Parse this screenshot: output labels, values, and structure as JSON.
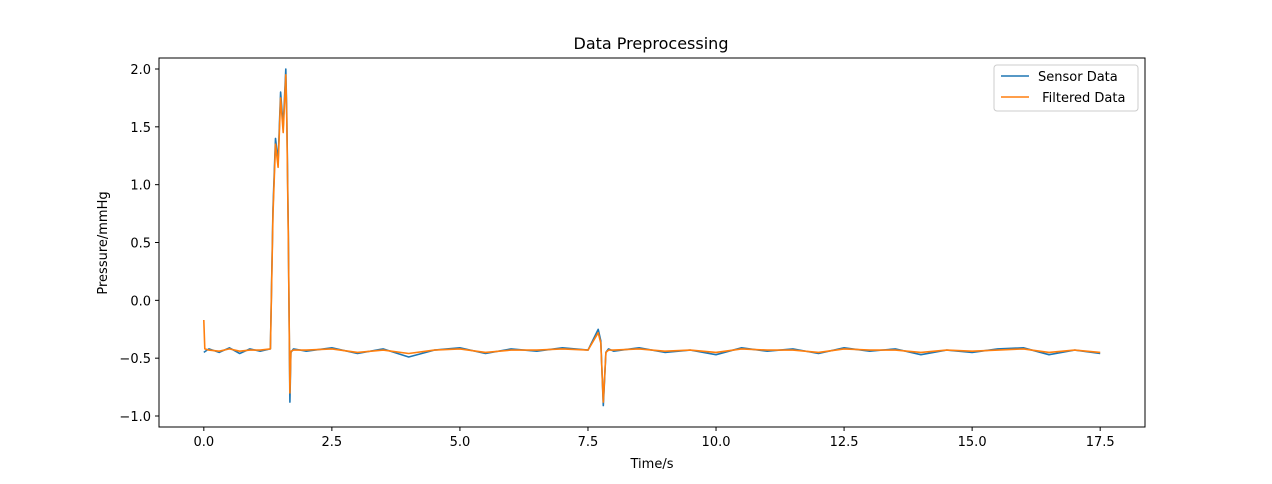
{
  "chart_data": {
    "type": "line",
    "title": "Data Preprocessing",
    "xlabel": "Time/s",
    "ylabel": "Pressure/mmHg",
    "xlim": [
      -0.875,
      18.375
    ],
    "ylim": [
      -1.095,
      2.095
    ],
    "xticks": [
      0.0,
      2.5,
      5.0,
      7.5,
      10.0,
      12.5,
      15.0,
      17.5
    ],
    "xtick_labels": [
      "0.0",
      "2.5",
      "5.0",
      "7.5",
      "10.0",
      "12.5",
      "15.0",
      "17.5"
    ],
    "yticks": [
      -1.0,
      -0.5,
      0.0,
      0.5,
      1.0,
      1.5,
      2.0
    ],
    "ytick_labels": [
      "−1.0",
      "−0.5",
      "0.0",
      "0.5",
      "1.0",
      "1.5",
      "2.0"
    ],
    "grid": false,
    "legend_position": "top-right",
    "series": [
      {
        "name": "Sensor Data",
        "color": "#1f77b4",
        "x": [
          0.0,
          0.1,
          0.3,
          0.5,
          0.7,
          0.9,
          1.1,
          1.3,
          1.35,
          1.4,
          1.45,
          1.5,
          1.55,
          1.6,
          1.62,
          1.65,
          1.68,
          1.7,
          1.75,
          2.0,
          2.5,
          3.0,
          3.5,
          4.0,
          4.5,
          5.0,
          5.5,
          6.0,
          6.5,
          7.0,
          7.5,
          7.7,
          7.75,
          7.8,
          7.85,
          7.9,
          8.0,
          8.5,
          9.0,
          9.5,
          10.0,
          10.5,
          11.0,
          11.5,
          12.0,
          12.5,
          13.0,
          13.5,
          14.0,
          14.5,
          15.0,
          15.5,
          16.0,
          16.5,
          17.0,
          17.5
        ],
        "y": [
          -0.45,
          -0.42,
          -0.45,
          -0.41,
          -0.46,
          -0.42,
          -0.44,
          -0.42,
          0.8,
          1.4,
          1.2,
          1.8,
          1.5,
          2.0,
          1.6,
          0.6,
          -0.88,
          -0.45,
          -0.42,
          -0.44,
          -0.41,
          -0.46,
          -0.42,
          -0.49,
          -0.43,
          -0.41,
          -0.46,
          -0.42,
          -0.44,
          -0.41,
          -0.43,
          -0.25,
          -0.35,
          -0.91,
          -0.45,
          -0.42,
          -0.44,
          -0.41,
          -0.45,
          -0.43,
          -0.47,
          -0.41,
          -0.44,
          -0.42,
          -0.46,
          -0.41,
          -0.44,
          -0.42,
          -0.47,
          -0.43,
          -0.45,
          -0.42,
          -0.41,
          -0.47,
          -0.43,
          -0.46
        ]
      },
      {
        "name": " Filtered Data",
        "color": "#ff7f0e",
        "x": [
          0.0,
          0.02,
          0.1,
          0.3,
          0.5,
          0.7,
          0.9,
          1.1,
          1.3,
          1.35,
          1.4,
          1.45,
          1.5,
          1.55,
          1.6,
          1.62,
          1.65,
          1.68,
          1.7,
          1.75,
          2.0,
          2.5,
          3.0,
          3.5,
          4.0,
          4.5,
          5.0,
          5.5,
          6.0,
          6.5,
          7.0,
          7.5,
          7.7,
          7.75,
          7.8,
          7.85,
          7.9,
          8.0,
          8.5,
          9.0,
          9.5,
          10.0,
          10.5,
          11.0,
          11.5,
          12.0,
          12.5,
          13.0,
          13.5,
          14.0,
          14.5,
          15.0,
          15.5,
          16.0,
          16.5,
          17.0,
          17.5
        ],
        "y": [
          -0.17,
          -0.42,
          -0.43,
          -0.44,
          -0.42,
          -0.44,
          -0.43,
          -0.43,
          -0.42,
          0.75,
          1.35,
          1.15,
          1.75,
          1.45,
          1.95,
          1.55,
          0.55,
          -0.8,
          -0.44,
          -0.43,
          -0.43,
          -0.42,
          -0.45,
          -0.43,
          -0.46,
          -0.43,
          -0.42,
          -0.45,
          -0.43,
          -0.43,
          -0.42,
          -0.43,
          -0.28,
          -0.37,
          -0.88,
          -0.45,
          -0.43,
          -0.43,
          -0.42,
          -0.44,
          -0.43,
          -0.45,
          -0.42,
          -0.43,
          -0.43,
          -0.45,
          -0.42,
          -0.43,
          -0.43,
          -0.45,
          -0.43,
          -0.44,
          -0.43,
          -0.42,
          -0.45,
          -0.43,
          -0.45
        ]
      }
    ]
  }
}
